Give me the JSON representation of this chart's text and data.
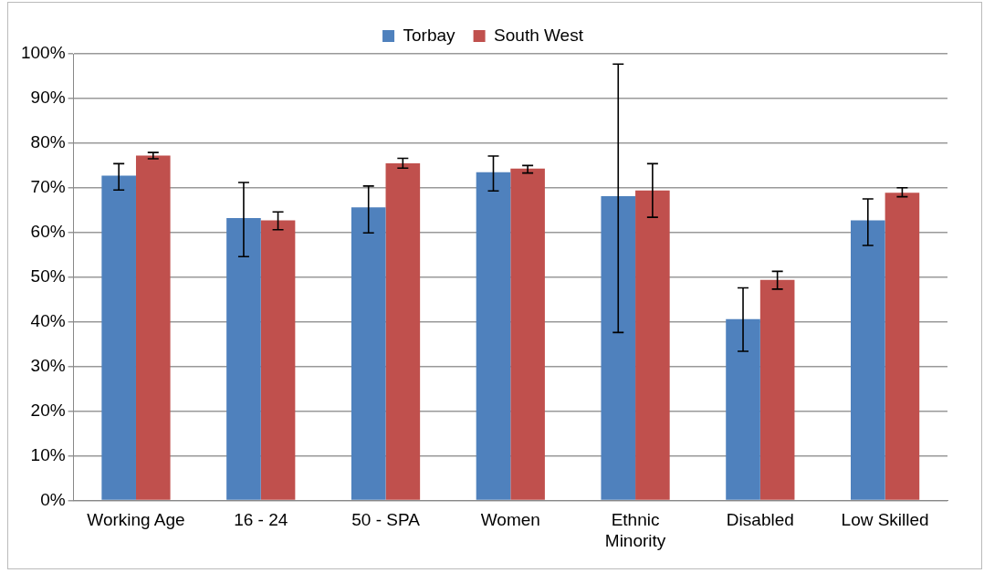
{
  "chart_data": {
    "type": "bar",
    "categories": [
      "Working Age",
      "16 - 24",
      "50 - SPA",
      "Women",
      "Ethnic Minority",
      "Disabled",
      "Low Skilled"
    ],
    "series": [
      {
        "name": "Torbay",
        "color": "#4f81bd",
        "values": [
          72.7,
          63.2,
          65.6,
          73.5,
          68.1,
          40.6,
          62.7
        ],
        "errors": [
          [
            69.5,
            75.4
          ],
          [
            54.6,
            71.2
          ],
          [
            59.9,
            70.4
          ],
          [
            69.3,
            77.1
          ],
          [
            37.6,
            97.7
          ],
          [
            33.4,
            47.6
          ],
          [
            57.1,
            67.5
          ]
        ]
      },
      {
        "name": "South West",
        "color": "#c0504d",
        "values": [
          77.2,
          62.7,
          75.5,
          74.3,
          69.4,
          49.4,
          68.9
        ],
        "errors": [
          [
            76.5,
            77.9
          ],
          [
            60.6,
            64.6
          ],
          [
            74.4,
            76.6
          ],
          [
            73.3,
            75.0
          ],
          [
            63.4,
            75.4
          ],
          [
            47.3,
            51.3
          ],
          [
            68.0,
            70.0
          ]
        ]
      }
    ],
    "ylim": [
      0,
      100
    ],
    "yticks": [
      {
        "value": 0,
        "label": "0%"
      },
      {
        "value": 10,
        "label": "10%"
      },
      {
        "value": 20,
        "label": "20%"
      },
      {
        "value": 30,
        "label": "30%"
      },
      {
        "value": 40,
        "label": "40%"
      },
      {
        "value": 50,
        "label": "50%"
      },
      {
        "value": 60,
        "label": "60%"
      },
      {
        "value": 70,
        "label": "70%"
      },
      {
        "value": 80,
        "label": "80%"
      },
      {
        "value": 90,
        "label": "90%"
      },
      {
        "value": 100,
        "label": "100%"
      }
    ],
    "grid": "y",
    "legend": "top"
  }
}
